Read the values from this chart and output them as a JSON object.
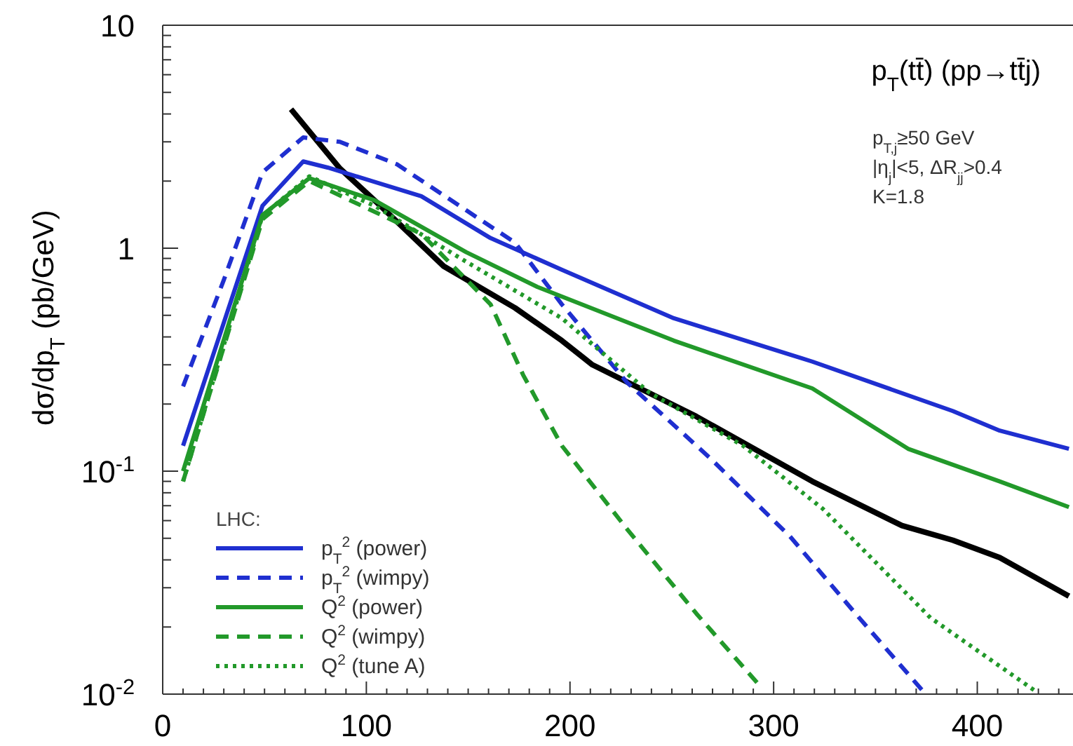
{
  "chart_data": {
    "type": "line",
    "title": "p$_{T}$(tt̄) (pp→tt̄j)",
    "ylabel": "dσ/dp$_{T}$ (pb/GeV)",
    "legend_title": "LHC:",
    "legend": "bottom left",
    "log": "y",
    "grid": false,
    "annotations": [
      "p$_{T,j}$≥50 GeV",
      "|η$_{j}$|<5, ΔR$_{jj}$>0.4",
      "K=1.8"
    ],
    "xlim": [
      0,
      447
    ],
    "ylim": [
      0.01,
      10
    ],
    "xticks": [
      0,
      {
        "value": 10,
        "label": null
      },
      {
        "value": 20,
        "label": null
      },
      {
        "value": 30,
        "label": null
      },
      {
        "value": 40,
        "label": null
      },
      {
        "value": 50,
        "label": null
      },
      {
        "value": 60,
        "label": null
      },
      {
        "value": 70,
        "label": null
      },
      {
        "value": 80,
        "label": null
      },
      {
        "value": 90,
        "label": null
      },
      100,
      {
        "value": 110,
        "label": null
      },
      {
        "value": 120,
        "label": null
      },
      {
        "value": 130,
        "label": null
      },
      {
        "value": 140,
        "label": null
      },
      {
        "value": 150,
        "label": null
      },
      {
        "value": 160,
        "label": null
      },
      {
        "value": 170,
        "label": null
      },
      {
        "value": 180,
        "label": null
      },
      {
        "value": 190,
        "label": null
      },
      200,
      {
        "value": 210,
        "label": null
      },
      {
        "value": 220,
        "label": null
      },
      {
        "value": 230,
        "label": null
      },
      {
        "value": 240,
        "label": null
      },
      {
        "value": 250,
        "label": null
      },
      {
        "value": 260,
        "label": null
      },
      {
        "value": 270,
        "label": null
      },
      {
        "value": 280,
        "label": null
      },
      {
        "value": 290,
        "label": null
      },
      300,
      {
        "value": 310,
        "label": null
      },
      {
        "value": 320,
        "label": null
      },
      {
        "value": 330,
        "label": null
      },
      {
        "value": 340,
        "label": null
      },
      {
        "value": 350,
        "label": null
      },
      {
        "value": 360,
        "label": null
      },
      {
        "value": 370,
        "label": null
      },
      {
        "value": 380,
        "label": null
      },
      {
        "value": 390,
        "label": null
      },
      400,
      {
        "value": 410,
        "label": null
      },
      {
        "value": 420,
        "label": null
      },
      {
        "value": 430,
        "label": null
      },
      {
        "value": 440,
        "label": null
      }
    ],
    "yticks": [
      {
        "value": 0.01,
        "label": "10$^{-2}$"
      },
      {
        "value": 0.02,
        "label": null
      },
      {
        "value": 0.03,
        "label": null
      },
      {
        "value": 0.04,
        "label": null
      },
      {
        "value": 0.05,
        "label": null
      },
      {
        "value": 0.06,
        "label": null
      },
      {
        "value": 0.07,
        "label": null
      },
      {
        "value": 0.08,
        "label": null
      },
      {
        "value": 0.09,
        "label": null
      },
      {
        "value": 0.1,
        "label": "10$^{-1}$"
      },
      {
        "value": 0.2,
        "label": null
      },
      {
        "value": 0.3,
        "label": null
      },
      {
        "value": 0.4,
        "label": null
      },
      {
        "value": 0.5,
        "label": null
      },
      {
        "value": 0.6,
        "label": null
      },
      {
        "value": 0.7,
        "label": null
      },
      {
        "value": 0.8,
        "label": null
      },
      {
        "value": 0.9,
        "label": null
      },
      1,
      {
        "value": 2,
        "label": null
      },
      {
        "value": 3,
        "label": null
      },
      {
        "value": 4,
        "label": null
      },
      {
        "value": 5,
        "label": null
      },
      {
        "value": 6,
        "label": null
      },
      {
        "value": 7,
        "label": null
      },
      {
        "value": 8,
        "label": null
      },
      {
        "value": 9,
        "label": null
      },
      10
    ],
    "series": [
      {
        "color": "#000000",
        "line_style": "solid",
        "x": [
          63,
          87,
          104,
          138,
          173,
          196,
          211,
          262,
          319,
          363,
          388,
          411,
          445
        ],
        "values": [
          4.2,
          2.28,
          1.64,
          0.83,
          0.54,
          0.385,
          0.3,
          0.176,
          0.09,
          0.057,
          0.049,
          0.041,
          0.0275
        ]
      },
      {
        "name": "p$_{T}$$^{2}$ (power)",
        "color": "#1f2fd0",
        "line_style": "solid",
        "x": [
          10,
          49,
          69,
          81,
          127,
          161,
          196,
          251,
          319,
          388,
          411,
          445
        ],
        "values": [
          0.13,
          1.55,
          2.45,
          2.3,
          1.71,
          1.11,
          0.8,
          0.485,
          0.31,
          0.186,
          0.152,
          0.126
        ]
      },
      {
        "name": "p$_{T}$$^{2}$ (wimpy)",
        "color": "#1f2fd0",
        "line_style": "dashed",
        "x": [
          10,
          30,
          49,
          69,
          87,
          115,
          149,
          173,
          196,
          228,
          269,
          308,
          342,
          373
        ],
        "values": [
          0.24,
          0.72,
          2.19,
          3.14,
          3.0,
          2.38,
          1.48,
          1.06,
          0.56,
          0.25,
          0.114,
          0.051,
          0.022,
          0.0104
        ]
      },
      {
        "name": "Q$^{2}$ (power)",
        "color": "#22992a",
        "line_style": "solid",
        "x": [
          10,
          49,
          72,
          104,
          149,
          184,
          251,
          319,
          366,
          411,
          445
        ],
        "values": [
          0.1,
          1.41,
          2.06,
          1.64,
          0.96,
          0.67,
          0.385,
          0.235,
          0.126,
          0.09,
          0.069
        ]
      },
      {
        "name": "Q$^{2}$ (wimpy)",
        "color": "#22992a",
        "line_style": "dashed",
        "x": [
          10,
          49,
          72,
          127,
          161,
          177,
          196,
          228,
          262,
          294
        ],
        "values": [
          0.09,
          1.35,
          2.0,
          1.16,
          0.56,
          0.27,
          0.13,
          0.055,
          0.023,
          0.0107
        ]
      },
      {
        "name": "Q$^{2}$ (tune A)",
        "color": "#22992a",
        "line_style": "dotted",
        "x": [
          10,
          49,
          72,
          104,
          149,
          196,
          239,
          285,
          324,
          377,
          428
        ],
        "values": [
          0.09,
          1.4,
          2.1,
          1.55,
          0.87,
          0.485,
          0.225,
          0.13,
          0.068,
          0.022,
          0.0104
        ]
      }
    ]
  }
}
